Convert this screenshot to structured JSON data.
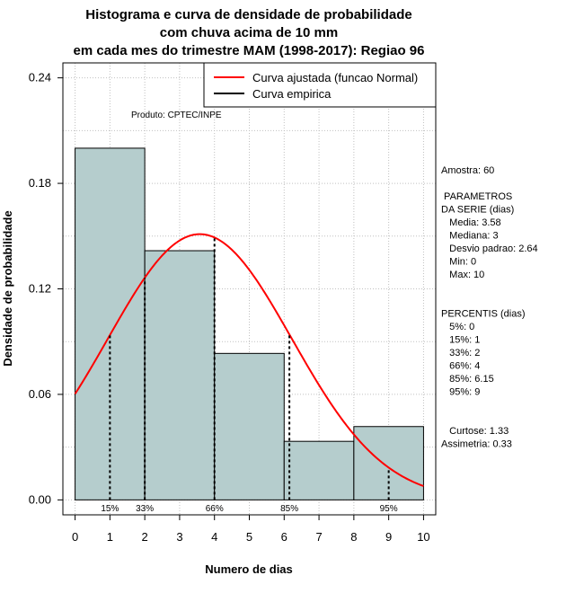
{
  "chart_data": {
    "type": "bar",
    "title_lines": [
      "Histograma e curva de densidade de probabilidade",
      "com chuva acima de 10 mm",
      "em cada mes do trimestre MAM (1998-2017): Regiao 96"
    ],
    "xlabel": "Numero de dias",
    "ylabel": "Densidade de probabilidade",
    "xlim": [
      -0.35,
      10.35
    ],
    "ylim": [
      -0.0085,
      0.2485
    ],
    "x_ticks": [
      "0",
      "1",
      "2",
      "3",
      "4",
      "5",
      "6",
      "7",
      "8",
      "9",
      "10"
    ],
    "y_ticks": [
      "0.00",
      "0.06",
      "0.12",
      "0.18",
      "0.24"
    ],
    "bins": [
      {
        "start": 0,
        "end": 2,
        "density": 0.2
      },
      {
        "start": 2,
        "end": 4,
        "density": 0.1417
      },
      {
        "start": 4,
        "end": 6,
        "density": 0.0833
      },
      {
        "start": 6,
        "end": 8,
        "density": 0.0333
      },
      {
        "start": 8,
        "end": 10,
        "density": 0.0417
      }
    ],
    "normal_curve": {
      "mean": 3.58,
      "sd": 2.64,
      "x_from": 0,
      "x_to": 10
    },
    "percentile_markers": [
      {
        "label": "15%",
        "x": 1
      },
      {
        "label": "33%",
        "x": 2
      },
      {
        "label": "66%",
        "x": 4
      },
      {
        "label": "85%",
        "x": 6.15
      },
      {
        "label": "95%",
        "x": 9
      }
    ],
    "legend": {
      "position": "top-right",
      "entries": [
        {
          "label": "Curva ajustada (funcao Normal)",
          "color": "#ff0000"
        },
        {
          "label": "Curva empirica",
          "color": "#000000"
        }
      ]
    },
    "colors": {
      "bar_fill": "#b5cdcd",
      "curve": "#ff0000",
      "grid": "#c0c0c0"
    },
    "annotation": "Produto: CPTEC/INPE",
    "side_text": [
      "Amostra: 60",
      "",
      " PARAMETROS",
      "DA SERIE (dias)",
      "   Media: 3.58",
      "   Mediana: 3",
      "   Desvio padrao: 2.64",
      "   Min: 0",
      "   Max: 10",
      "",
      "",
      "PERCENTIS (dias)",
      "   5%: 0",
      "   15%: 1",
      "   33%: 2",
      "   66%: 4",
      "   85%: 6.15",
      "   95%: 9",
      "",
      "",
      "   Curtose: 1.33",
      "Assimetria: 0.33"
    ]
  }
}
